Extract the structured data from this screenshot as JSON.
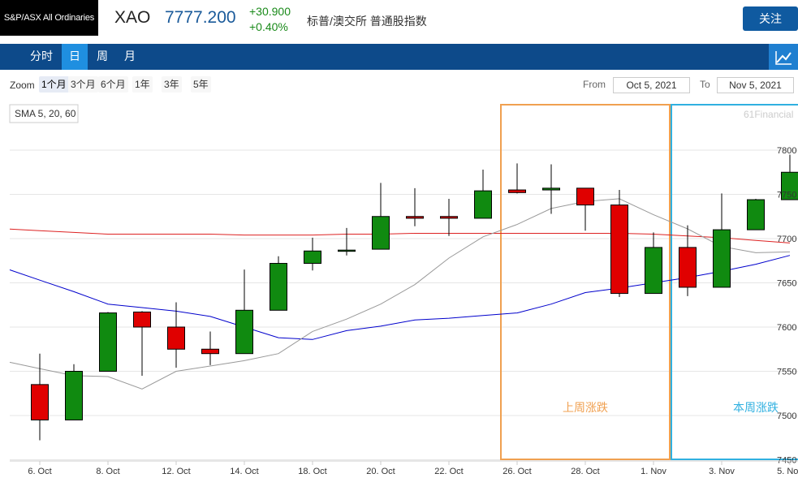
{
  "header": {
    "logo_text": "S&P/ASX All Ordinaries",
    "symbol": "XAO",
    "price": "7777.200",
    "change_abs": "+30.900",
    "change_pct": "+0.40%",
    "index_name": "标普/澳交所 普通股指数",
    "follow_label": "关注"
  },
  "tabs": [
    "分时",
    "日",
    "周",
    "月"
  ],
  "active_tab": "日",
  "zoom": {
    "label": "Zoom",
    "options": [
      "1个月",
      "3个月",
      "6个月",
      "1年",
      "3年",
      "5年"
    ],
    "active": "1个月",
    "from_label": "From",
    "from_value": "Oct 5, 2021",
    "to_label": "To",
    "to_value": "Nov 5, 2021"
  },
  "colors": {
    "up": "#108a10",
    "down": "#e00000",
    "sma5": "#999999",
    "sma20": "#0000cc",
    "sma60": "#dd2222",
    "box_last_week": "#f0a050",
    "box_this_week": "#30b0e0"
  },
  "chart_data": {
    "type": "candlestick",
    "legend": "SMA 5, 20, 60",
    "watermark": "61Financial",
    "ylim": [
      7440,
      7820
    ],
    "yticks": [
      7450,
      7500,
      7550,
      7600,
      7650,
      7700,
      7750,
      7800
    ],
    "xtick_labels": [
      "6. Oct",
      "8. Oct",
      "12. Oct",
      "14. Oct",
      "18. Oct",
      "20. Oct",
      "22. Oct",
      "26. Oct",
      "28. Oct",
      "1. Nov",
      "3. Nov",
      "5. Nov"
    ],
    "candles": [
      {
        "date": "5. Oct",
        "open": 7535,
        "high": 7570,
        "low": 7472,
        "close": 7495
      },
      {
        "date": "6. Oct",
        "open": 7495,
        "high": 7558,
        "low": 7495,
        "close": 7550
      },
      {
        "date": "7. Oct",
        "open": 7550,
        "high": 7617,
        "low": 7550,
        "close": 7616
      },
      {
        "date": "8. Oct",
        "open": 7617,
        "high": 7618,
        "low": 7545,
        "close": 7600
      },
      {
        "date": "11. Oct",
        "open": 7600,
        "high": 7628,
        "low": 7554,
        "close": 7575
      },
      {
        "date": "12. Oct",
        "open": 7575,
        "high": 7595,
        "low": 7557,
        "close": 7570
      },
      {
        "date": "13. Oct",
        "open": 7570,
        "high": 7665,
        "low": 7570,
        "close": 7619
      },
      {
        "date": "14. Oct",
        "open": 7619,
        "high": 7680,
        "low": 7619,
        "close": 7672
      },
      {
        "date": "15. Oct",
        "open": 7672,
        "high": 7701,
        "low": 7664,
        "close": 7686
      },
      {
        "date": "18. Oct",
        "open": 7686,
        "high": 7712,
        "low": 7681,
        "close": 7687
      },
      {
        "date": "19. Oct",
        "open": 7688,
        "high": 7763,
        "low": 7688,
        "close": 7725
      },
      {
        "date": "20. Oct",
        "open": 7725,
        "high": 7757,
        "low": 7714,
        "close": 7723
      },
      {
        "date": "21. Oct",
        "open": 7725,
        "high": 7745,
        "low": 7703,
        "close": 7723
      },
      {
        "date": "22. Oct",
        "open": 7723,
        "high": 7778,
        "low": 7723,
        "close": 7754
      },
      {
        "date": "25. Oct",
        "open": 7755,
        "high": 7785,
        "low": 7751,
        "close": 7752
      },
      {
        "date": "26. Oct",
        "open": 7755,
        "high": 7784,
        "low": 7728,
        "close": 7757
      },
      {
        "date": "27. Oct",
        "open": 7757,
        "high": 7757,
        "low": 7709,
        "close": 7738
      },
      {
        "date": "28. Oct",
        "open": 7738,
        "high": 7755,
        "low": 7634,
        "close": 7638
      },
      {
        "date": "29. Oct",
        "open": 7638,
        "high": 7707,
        "low": 7638,
        "close": 7690
      },
      {
        "date": "1. Nov",
        "open": 7690,
        "high": 7715,
        "low": 7635,
        "close": 7645
      },
      {
        "date": "2. Nov",
        "open": 7645,
        "high": 7751,
        "low": 7645,
        "close": 7710
      },
      {
        "date": "3. Nov",
        "open": 7710,
        "high": 7745,
        "low": 7710,
        "close": 7744
      },
      {
        "date": "4. Nov",
        "open": 7744,
        "high": 7795,
        "low": 7744,
        "close": 7775
      }
    ],
    "sma5": [
      7553,
      7545,
      7544,
      7530,
      7550,
      7556,
      7562,
      7570,
      7595,
      7609,
      7626,
      7648,
      7678,
      7702,
      7716,
      7734,
      7742,
      7745,
      7727,
      7711,
      7691,
      7684,
      7685
    ],
    "sma20": [
      7653,
      7640,
      7626,
      7622,
      7618,
      7612,
      7600,
      7588,
      7586,
      7596,
      7601,
      7608,
      7610,
      7613,
      7616,
      7626,
      7639,
      7644,
      7650,
      7656,
      7663,
      7671,
      7681
    ],
    "sma60": [
      7709,
      7707,
      7705,
      7705,
      7705,
      7705,
      7704,
      7704,
      7704,
      7705,
      7705,
      7706,
      7706,
      7706,
      7706,
      7706,
      7706,
      7706,
      7705,
      7703,
      7701,
      7698,
      7695
    ],
    "annotations": [
      {
        "label": "上周涨跌",
        "from": "25. Oct",
        "to": "29. Oct"
      },
      {
        "label": "本周涨跌",
        "from": "1. Nov",
        "to": "5. Nov"
      }
    ]
  }
}
